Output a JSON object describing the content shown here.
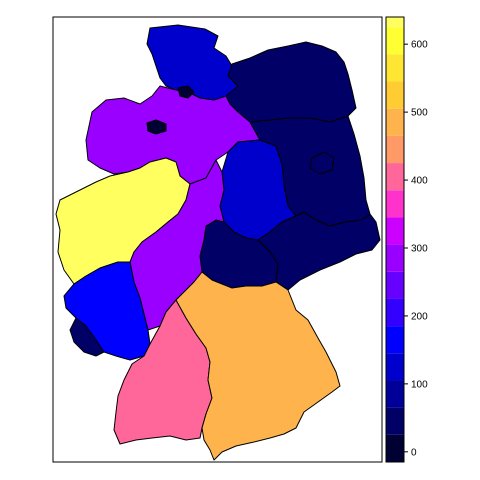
{
  "map": {
    "regions": [
      {
        "id": "schleswig-holstein",
        "value": 130
      },
      {
        "id": "mecklenburg-vorpommern",
        "value": 50
      },
      {
        "id": "niedersachsen",
        "value": 290
      },
      {
        "id": "bremen",
        "value": 10
      },
      {
        "id": "hamburg",
        "value": 5
      },
      {
        "id": "nordrhein-westfalen",
        "value": 640
      },
      {
        "id": "sachsen-anhalt",
        "value": 120
      },
      {
        "id": "brandenburg",
        "value": 40
      },
      {
        "id": "berlin",
        "value": 40
      },
      {
        "id": "sachsen",
        "value": 60
      },
      {
        "id": "thueringen",
        "value": 60
      },
      {
        "id": "hessen",
        "value": 300
      },
      {
        "id": "rheinland-pfalz",
        "value": 160
      },
      {
        "id": "saarland",
        "value": 30
      },
      {
        "id": "baden-wuerttemberg",
        "value": 400
      },
      {
        "id": "bayern",
        "value": 500
      }
    ]
  },
  "colorbar": {
    "min": -15,
    "max": 640,
    "step": 40,
    "ticks": [
      {
        "value": 0,
        "label": "0"
      },
      {
        "value": 100,
        "label": "100"
      },
      {
        "value": 200,
        "label": "200"
      },
      {
        "value": 300,
        "label": "300"
      },
      {
        "value": 400,
        "label": "400"
      },
      {
        "value": 500,
        "label": "500"
      },
      {
        "value": 600,
        "label": "600"
      }
    ],
    "colors": [
      "#000033",
      "#000066",
      "#000099",
      "#0000CC",
      "#0000FF",
      "#3300FF",
      "#6600FF",
      "#9900FF",
      "#CC00FF",
      "#FF33CC",
      "#FF6699",
      "#FF9966",
      "#FFB34D",
      "#FFCC33",
      "#FFE633",
      "#FFFF33",
      "#FFFF60"
    ]
  }
}
